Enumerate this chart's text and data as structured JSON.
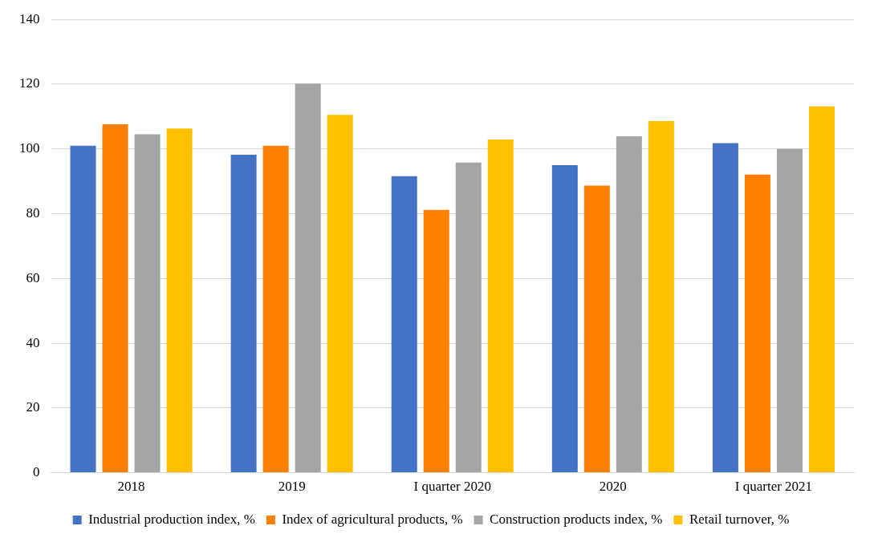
{
  "chart_data": {
    "type": "bar",
    "categories": [
      "2018",
      "2019",
      "I quarter 2020",
      "2020",
      "I quarter 2021"
    ],
    "series": [
      {
        "name": "Industrial production index, %",
        "color": "#4472c4",
        "values": [
          101,
          98.2,
          91.6,
          95,
          101.8
        ]
      },
      {
        "name": "Index of agricultural products, %",
        "color": "#ff7f00",
        "values": [
          107.6,
          101,
          81.2,
          88.7,
          92.1
        ]
      },
      {
        "name": "Construction products index, %",
        "color": "#a5a5a5",
        "values": [
          104.5,
          120.2,
          95.8,
          103.9,
          100
        ]
      },
      {
        "name": "Retail turnover, %",
        "color": "#ffc000",
        "values": [
          106.3,
          110.5,
          102.9,
          108.6,
          113.1
        ]
      }
    ],
    "ylim": [
      0,
      140
    ],
    "yticks": [
      0,
      20,
      40,
      60,
      80,
      100,
      120,
      140
    ],
    "grid": "y",
    "legend": "bottom"
  }
}
